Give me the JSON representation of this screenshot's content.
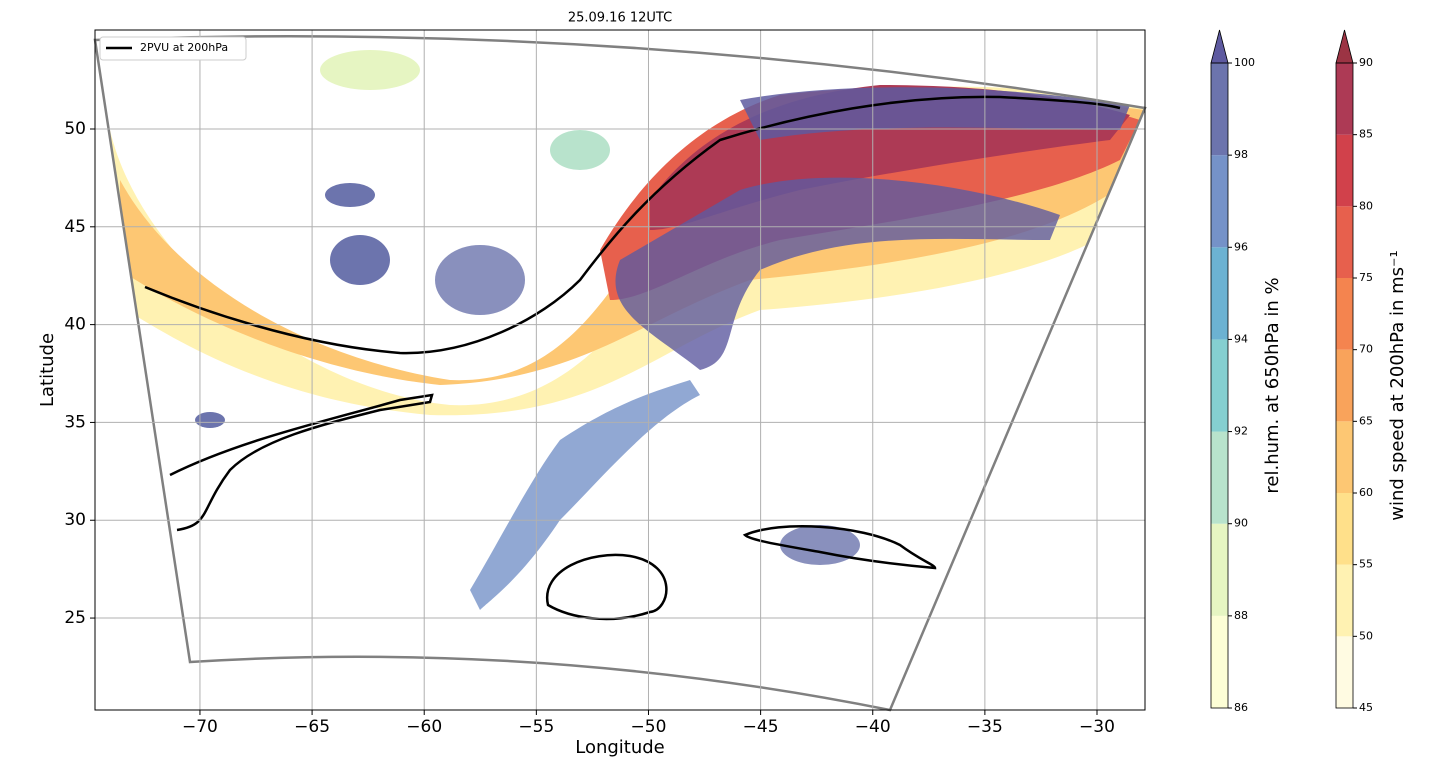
{
  "chart_data": {
    "type": "map",
    "title": "25.09.16 12UTC",
    "x_label": "Longitude",
    "y_label": "Latitude",
    "xlim": [
      -74.68,
      -27.86
    ],
    "ylim": [
      20.3,
      55.06
    ],
    "xticks": [
      {
        "value": -70,
        "label": "−70"
      },
      {
        "value": -65,
        "label": "−65"
      },
      {
        "value": -60,
        "label": "−60"
      },
      {
        "value": -55,
        "label": "−55"
      },
      {
        "value": -50,
        "label": "−50"
      },
      {
        "value": -45,
        "label": "−45"
      },
      {
        "value": -40,
        "label": "−40"
      },
      {
        "value": -35,
        "label": "−35"
      },
      {
        "value": -30,
        "label": "−30"
      }
    ],
    "yticks": [
      25,
      30,
      35,
      40,
      45,
      50
    ],
    "grid": true,
    "legend": {
      "position": "upper left",
      "entries": [
        {
          "name": "2PVU at 200hPa",
          "color": "#000000"
        }
      ]
    },
    "colorbars": [
      {
        "label": "rel.hum. at 650hPa in %",
        "ticks": [
          86,
          88,
          90,
          92,
          94,
          96,
          98,
          100
        ],
        "colors": [
          "#fdfed6",
          "#e6f5c2",
          "#b8e3cc",
          "#85cfd0",
          "#6cb2d2",
          "#7592c8",
          "#6c74ad"
        ],
        "extend_color": "#5e5aa0"
      },
      {
        "label": "wind speed at 200hPa in ms⁻¹",
        "ticks": [
          45,
          50,
          55,
          60,
          65,
          70,
          75,
          80,
          85,
          90
        ],
        "colors": [
          "#fffbe2",
          "#fff2b2",
          "#ffe08a",
          "#fdc773",
          "#f9a35b",
          "#f4844f",
          "#e7604d",
          "#d1414b",
          "#ad3a55"
        ],
        "extend_color": "#9c3444"
      }
    ]
  }
}
